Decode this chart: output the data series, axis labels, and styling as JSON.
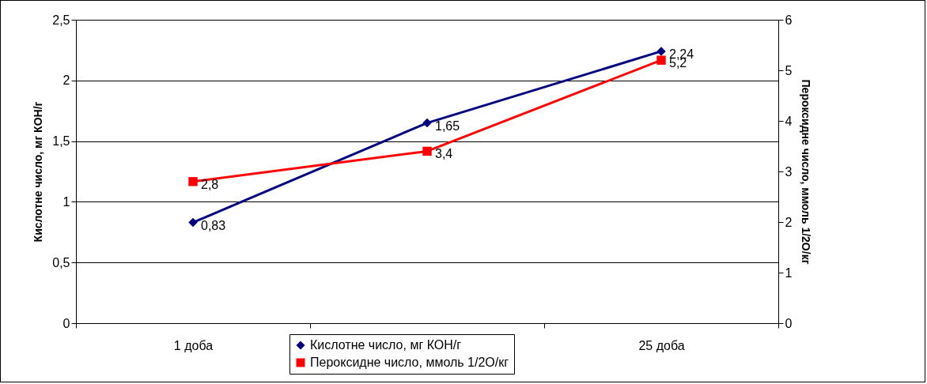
{
  "chart_data": {
    "type": "line",
    "categories": [
      "1 доба",
      null,
      "25 доба"
    ],
    "ylabel": "Кислотне число, мг КОН/г",
    "y2label": "Пероксидне число, ммоль 1/2О/кг",
    "ylim": [
      0,
      2.5
    ],
    "yticks": [
      0,
      {
        "value": 0.5,
        "label": "0,5"
      },
      1,
      {
        "value": 1.5,
        "label": "1,5"
      },
      2,
      {
        "value": 2.5,
        "label": "2,5"
      }
    ],
    "y2lim": [
      0,
      6
    ],
    "y2ticks": [
      0,
      1,
      2,
      3,
      4,
      5,
      6
    ],
    "grid": "y",
    "legend": "bottom",
    "series": [
      {
        "name": "Кислотне число, мг КОН/г",
        "color": "#000080",
        "marker": "diamond",
        "values": [
          0.83,
          1.65,
          2.24
        ],
        "value_labels": [
          "0,83",
          "1,65",
          "2,24"
        ]
      },
      {
        "name": "Пероксидне число, ммоль 1/2О/кг",
        "color": "#ff0000",
        "marker": "square",
        "axis": "y2",
        "values": [
          2.8,
          3.4,
          5.2
        ],
        "value_labels": [
          "2,8",
          "3,4",
          "5,2"
        ]
      }
    ]
  }
}
